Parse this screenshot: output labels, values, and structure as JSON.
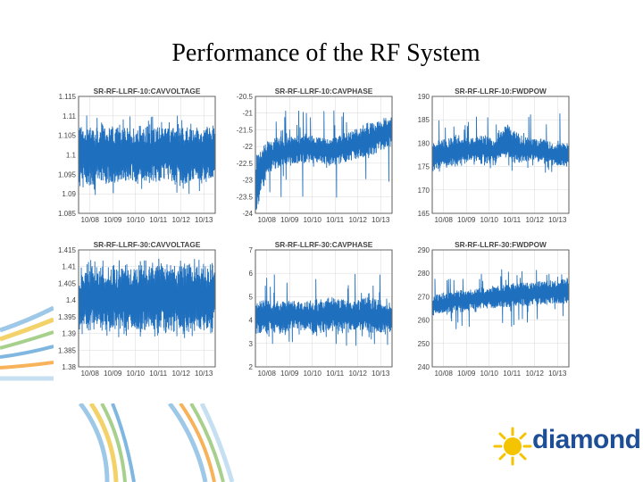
{
  "slide": {
    "title": "Performance of the RF System"
  },
  "logo": {
    "text": "diamond"
  },
  "colors": {
    "trace": "#1f6fbf",
    "axis": "#555555",
    "grid": "#d8d8d8",
    "logo_blue": "#1e4f96",
    "logo_yellow": "#f4c400"
  },
  "chart_data": [
    {
      "type": "line",
      "title": "SR-RF-LLRF-10:CAVVOLTAGE",
      "x_tick_labels": [
        "10/08",
        "10/09",
        "10/10",
        "10/11",
        "10/12",
        "10/13"
      ],
      "y_tick_labels": [
        "1.115",
        "1.11",
        "1.105",
        "1.1",
        "1.095",
        "1.09",
        "1.085"
      ],
      "ylim": [
        1.085,
        1.115
      ],
      "grid": true,
      "series": [
        {
          "band_min": [
            1.093,
            1.092,
            1.093,
            1.092,
            1.093,
            1.092,
            1.093,
            1.093,
            1.092,
            1.093,
            1.092,
            1.093
          ],
          "band_max": [
            1.108,
            1.107,
            1.108,
            1.108,
            1.107,
            1.108,
            1.107,
            1.108,
            1.108,
            1.107,
            1.108,
            1.107
          ],
          "spikes_min": 1.0895,
          "spikes_max": 1.1105
        }
      ]
    },
    {
      "type": "line",
      "title": "SR-RF-LLRF-10:CAVPHASE",
      "x_tick_labels": [
        "10/08",
        "10/09",
        "10/10",
        "10/11",
        "10/12",
        "10/13"
      ],
      "y_tick_labels": [
        "-20.5",
        "-21",
        "-21.5",
        "-22",
        "-22.5",
        "-23",
        "-23.5",
        "-24"
      ],
      "ylim": [
        -24,
        -20.5
      ],
      "grid": true,
      "series": [
        {
          "band_min": [
            -23.9,
            -22.8,
            -22.6,
            -22.5,
            -22.5,
            -22.5,
            -22.6,
            -22.5,
            -22.4,
            -22.3,
            -22.2,
            -22.0
          ],
          "band_max": [
            -22.2,
            -21.8,
            -21.7,
            -21.7,
            -21.6,
            -21.7,
            -21.8,
            -21.6,
            -21.5,
            -21.3,
            -21.2,
            -21.0
          ],
          "spikes_min": -23.8,
          "spikes_max": -20.9
        }
      ]
    },
    {
      "type": "line",
      "title": "SR-RF-LLRF-10:FWDPOW",
      "x_tick_labels": [
        "10/08",
        "10/09",
        "10/10",
        "10/11",
        "10/12",
        "10/13"
      ],
      "y_tick_labels": [
        "190",
        "185",
        "180",
        "175",
        "170",
        "165"
      ],
      "ylim": [
        165,
        190
      ],
      "grid": true,
      "series": [
        {
          "band_min": [
            174,
            175,
            175,
            176,
            176,
            175,
            177,
            175,
            176,
            176,
            175,
            175
          ],
          "band_max": [
            180,
            181,
            182,
            181,
            182,
            181,
            184,
            182,
            181,
            181,
            180,
            180
          ],
          "spikes_min": 173.5,
          "spikes_max": 186.5
        }
      ]
    },
    {
      "type": "line",
      "title": "SR-RF-LLRF-30:CAVVOLTAGE",
      "x_tick_labels": [
        "10/08",
        "10/09",
        "10/10",
        "10/11",
        "10/12",
        "10/13"
      ],
      "y_tick_labels": [
        "1.415",
        "1.41",
        "1.405",
        "1.4",
        "1.395",
        "1.39",
        "1.385",
        "1.38"
      ],
      "ylim": [
        1.38,
        1.415
      ],
      "grid": true,
      "series": [
        {
          "band_min": [
            1.391,
            1.39,
            1.391,
            1.39,
            1.391,
            1.39,
            1.391,
            1.39,
            1.391,
            1.39,
            1.391,
            1.39
          ],
          "band_max": [
            1.41,
            1.411,
            1.41,
            1.411,
            1.41,
            1.411,
            1.41,
            1.411,
            1.41,
            1.411,
            1.41,
            1.411
          ],
          "spikes_min": 1.3885,
          "spikes_max": 1.4125
        }
      ]
    },
    {
      "type": "line",
      "title": "SR-RF-LLRF-30:CAVPHASE",
      "x_tick_labels": [
        "10/08",
        "10/09",
        "10/10",
        "10/11",
        "10/12",
        "10/13"
      ],
      "y_tick_labels": [
        "7",
        "6",
        "5",
        "4",
        "3",
        "2"
      ],
      "ylim": [
        2,
        7
      ],
      "grid": true,
      "series": [
        {
          "band_min": [
            3.4,
            3.5,
            3.4,
            3.6,
            3.5,
            3.4,
            3.5,
            3.5,
            3.6,
            3.5,
            3.4,
            3.5
          ],
          "band_max": [
            4.8,
            4.9,
            4.8,
            4.9,
            4.8,
            4.9,
            5.0,
            4.9,
            4.8,
            5.0,
            4.9,
            4.8
          ],
          "spikes_min": 2.9,
          "spikes_max": 6.0
        }
      ]
    },
    {
      "type": "line",
      "title": "SR-RF-LLRF-30:FWDPOW",
      "x_tick_labels": [
        "10/08",
        "10/09",
        "10/10",
        "10/11",
        "10/12",
        "10/13"
      ],
      "y_tick_labels": [
        "290",
        "280",
        "270",
        "260",
        "250",
        "240"
      ],
      "ylim": [
        240,
        290
      ],
      "grid": true,
      "series": [
        {
          "band_min": [
            262,
            263,
            263,
            264,
            265,
            265,
            265,
            266,
            266,
            266,
            267,
            267
          ],
          "band_max": [
            271,
            272,
            273,
            273,
            274,
            275,
            275,
            276,
            276,
            277,
            277,
            278
          ],
          "spikes_min": 256,
          "spikes_max": 282
        }
      ]
    }
  ]
}
